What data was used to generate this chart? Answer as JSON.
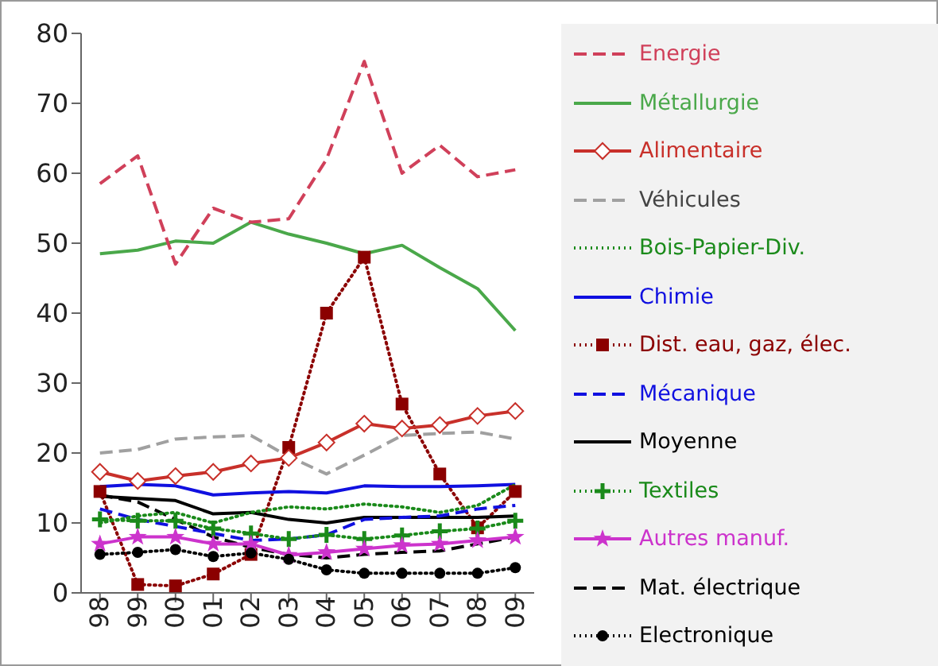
{
  "chart_data": {
    "type": "line",
    "categories": [
      "98",
      "99",
      "00",
      "01",
      "02",
      "03",
      "04",
      "05",
      "06",
      "07",
      "08",
      "09"
    ],
    "ylim": [
      0,
      80
    ],
    "yticks": [
      0,
      10,
      20,
      30,
      40,
      50,
      60,
      70,
      80
    ],
    "grid": false,
    "legend": "right",
    "series": [
      {
        "name": "Energie",
        "color": "#d0405a",
        "line_style": "dashed",
        "values": [
          58.5,
          62.5,
          47,
          55,
          53,
          53.5,
          62,
          76,
          60,
          64,
          59.5,
          60.5
        ]
      },
      {
        "name": "Métallurgie",
        "color": "#4aa84a",
        "line_style": "solid",
        "values": [
          48.5,
          49,
          50.3,
          50,
          53,
          51.3,
          50,
          48.5,
          49.7,
          46.5,
          43.5,
          37.5
        ]
      },
      {
        "name": "Alimentaire",
        "color": "#c8302a",
        "line_style": "solid",
        "marker": "diamond",
        "values": [
          17.3,
          16,
          16.7,
          17.3,
          18.5,
          19.3,
          21.5,
          24.2,
          23.5,
          24,
          25.3,
          26
        ]
      },
      {
        "name": "Véhicules",
        "color": "#a0a0a0",
        "line_style": "dashed",
        "values": [
          20,
          20.5,
          22,
          22.3,
          22.5,
          19.5,
          17,
          19.7,
          22.5,
          22.8,
          23,
          22
        ]
      },
      {
        "name": "Bois-Papier-Div.",
        "color": "#1a8a1a",
        "line_style": "dotted",
        "values": [
          10,
          11,
          11.5,
          10,
          11.5,
          12.3,
          12,
          12.7,
          12.3,
          11.5,
          12.5,
          15.5
        ]
      },
      {
        "name": "Chimie",
        "color": "#1010e0",
        "line_style": "solid",
        "values": [
          15.2,
          15.5,
          15.3,
          14,
          14.3,
          14.5,
          14.3,
          15.3,
          15.2,
          15.2,
          15.3,
          15.5
        ]
      },
      {
        "name": "Dist. eau, gaz, élec.",
        "color": "#8b0000",
        "line_style": "dotted",
        "marker": "square",
        "values": [
          14.5,
          1.2,
          1,
          2.7,
          5.5,
          20.8,
          40,
          48,
          27,
          17,
          9.3,
          14.5
        ]
      },
      {
        "name": "Mécanique",
        "color": "#1010e0",
        "line_style": "dashed",
        "values": [
          12,
          10.5,
          9.5,
          8.5,
          7.5,
          7.7,
          8.3,
          10.5,
          10.8,
          11,
          12,
          12.5
        ]
      },
      {
        "name": "Moyenne",
        "color": "#000000",
        "line_style": "solid",
        "values": [
          13.8,
          13.5,
          13.2,
          11.3,
          11.5,
          10.5,
          10,
          10.8,
          10.8,
          10.8,
          10.8,
          11
        ]
      },
      {
        "name": "Textiles",
        "color": "#1a8a1a",
        "line_style": "dotted",
        "marker": "cross",
        "values": [
          10.5,
          10.3,
          10.3,
          9.2,
          8.5,
          7.7,
          8.3,
          7.7,
          8.2,
          8.8,
          9.2,
          10.3
        ]
      },
      {
        "name": "Autres manuf.",
        "color": "#cc33cc",
        "line_style": "solid",
        "marker": "star",
        "values": [
          7,
          8,
          8,
          7,
          7,
          5.4,
          5.8,
          6.3,
          6.8,
          7,
          7.5,
          8
        ]
      },
      {
        "name": "Mat. électrique",
        "color": "#000000",
        "line_style": "dashed",
        "values": [
          14,
          13,
          10.5,
          8,
          6.5,
          5.5,
          5,
          5.5,
          5.8,
          6,
          7,
          8
        ]
      },
      {
        "name": "Electronique",
        "color": "#000000",
        "line_style": "dotted",
        "marker": "circle",
        "values": [
          5.5,
          5.8,
          6.2,
          5.2,
          5.7,
          4.8,
          3.3,
          2.8,
          2.8,
          2.8,
          2.8,
          3.6
        ]
      }
    ]
  }
}
